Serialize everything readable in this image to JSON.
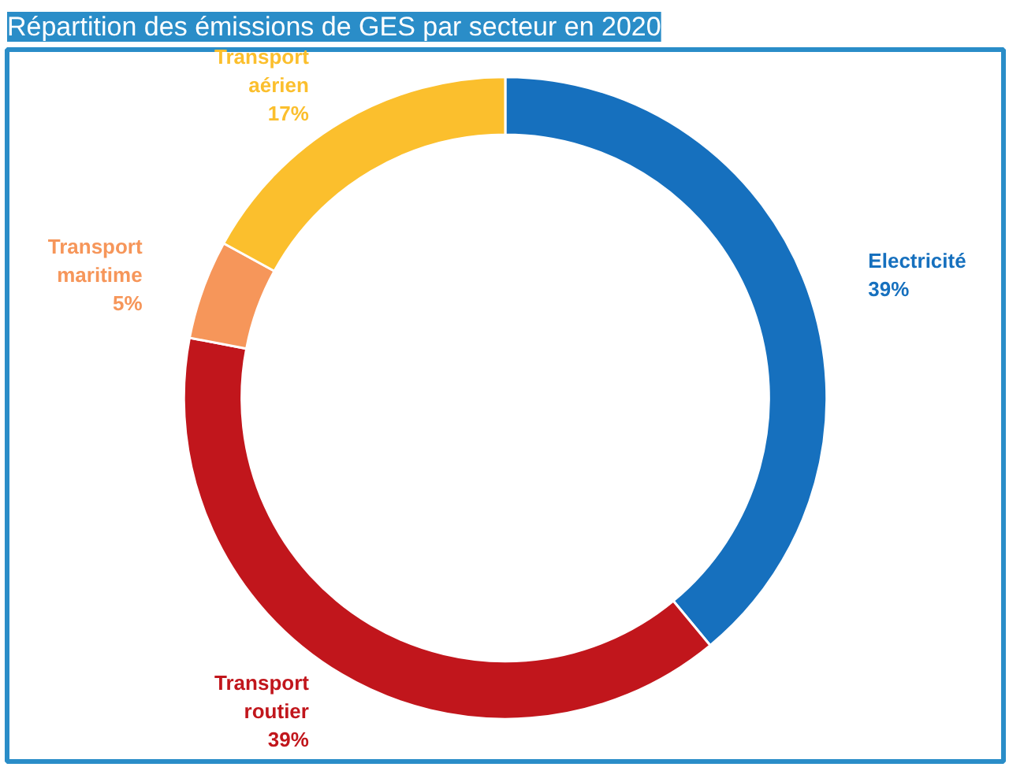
{
  "chart_data": {
    "type": "donut",
    "title": "Répartition des émissions de GES par secteur en 2020",
    "categories": [
      "Electricité",
      "Transport routier",
      "Transport maritime",
      "Transport aérien"
    ],
    "values": [
      39,
      39,
      5,
      17
    ],
    "colors": [
      "#1670be",
      "#c1161c",
      "#f6965a",
      "#fbbf2d"
    ],
    "value_labels": [
      "39%",
      "39%",
      "5%",
      "17%"
    ]
  }
}
